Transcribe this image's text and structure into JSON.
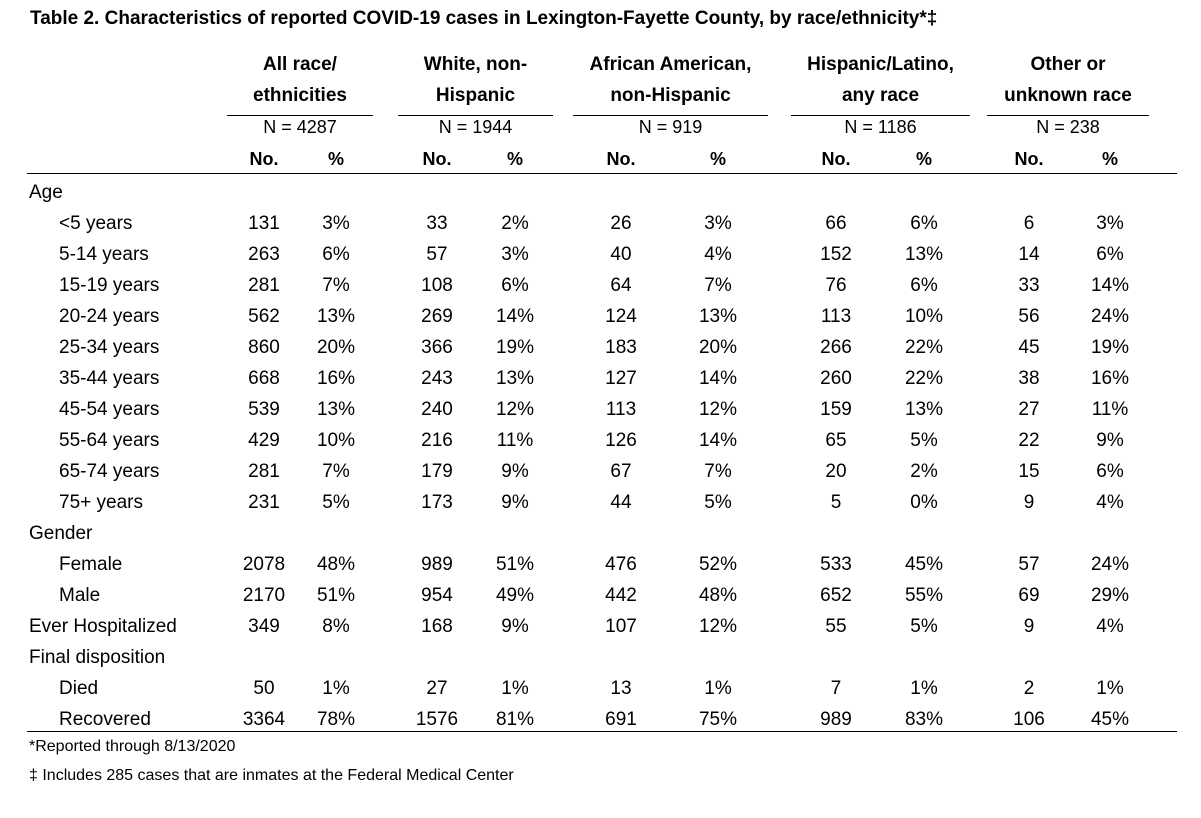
{
  "title": "Table 2. Characteristics of reported COVID-19 cases in Lexington-Fayette County, by race/ethnicity*‡",
  "groups": [
    {
      "line1": "All race/",
      "line2": "ethnicities",
      "n": "N = 4287"
    },
    {
      "line1": "White, non-",
      "line2": "Hispanic",
      "n": "N = 1944"
    },
    {
      "line1": "African American,",
      "line2": "non-Hispanic",
      "n": "N = 919"
    },
    {
      "line1": "Hispanic/Latino,",
      "line2": "any race",
      "n": "N = 1186"
    },
    {
      "line1": "Other or",
      "line2": "unknown race",
      "n": "N = 238"
    }
  ],
  "subheaders": {
    "no": "No.",
    "pct": "%"
  },
  "rows": [
    {
      "label": "Age",
      "indent": false,
      "values": []
    },
    {
      "label": "<5 years",
      "indent": true,
      "values": [
        "131",
        "3%",
        "33",
        "2%",
        "26",
        "3%",
        "66",
        "6%",
        "6",
        "3%"
      ]
    },
    {
      "label": "5-14 years",
      "indent": true,
      "values": [
        "263",
        "6%",
        "57",
        "3%",
        "40",
        "4%",
        "152",
        "13%",
        "14",
        "6%"
      ]
    },
    {
      "label": "15-19 years",
      "indent": true,
      "values": [
        "281",
        "7%",
        "108",
        "6%",
        "64",
        "7%",
        "76",
        "6%",
        "33",
        "14%"
      ]
    },
    {
      "label": "20-24 years",
      "indent": true,
      "values": [
        "562",
        "13%",
        "269",
        "14%",
        "124",
        "13%",
        "113",
        "10%",
        "56",
        "24%"
      ]
    },
    {
      "label": "25-34 years",
      "indent": true,
      "values": [
        "860",
        "20%",
        "366",
        "19%",
        "183",
        "20%",
        "266",
        "22%",
        "45",
        "19%"
      ]
    },
    {
      "label": "35-44 years",
      "indent": true,
      "values": [
        "668",
        "16%",
        "243",
        "13%",
        "127",
        "14%",
        "260",
        "22%",
        "38",
        "16%"
      ]
    },
    {
      "label": "45-54 years",
      "indent": true,
      "values": [
        "539",
        "13%",
        "240",
        "12%",
        "113",
        "12%",
        "159",
        "13%",
        "27",
        "11%"
      ]
    },
    {
      "label": "55-64 years",
      "indent": true,
      "values": [
        "429",
        "10%",
        "216",
        "11%",
        "126",
        "14%",
        "65",
        "5%",
        "22",
        "9%"
      ]
    },
    {
      "label": "65-74 years",
      "indent": true,
      "values": [
        "281",
        "7%",
        "179",
        "9%",
        "67",
        "7%",
        "20",
        "2%",
        "15",
        "6%"
      ]
    },
    {
      "label": "75+ years",
      "indent": true,
      "values": [
        "231",
        "5%",
        "173",
        "9%",
        "44",
        "5%",
        "5",
        "0%",
        "9",
        "4%"
      ]
    },
    {
      "label": "Gender",
      "indent": false,
      "values": []
    },
    {
      "label": "Female",
      "indent": true,
      "values": [
        "2078",
        "48%",
        "989",
        "51%",
        "476",
        "52%",
        "533",
        "45%",
        "57",
        "24%"
      ]
    },
    {
      "label": "Male",
      "indent": true,
      "values": [
        "2170",
        "51%",
        "954",
        "49%",
        "442",
        "48%",
        "652",
        "55%",
        "69",
        "29%"
      ]
    },
    {
      "label": "Ever Hospitalized",
      "indent": false,
      "values": [
        "349",
        "8%",
        "168",
        "9%",
        "107",
        "12%",
        "55",
        "5%",
        "9",
        "4%"
      ]
    },
    {
      "label": "Final disposition",
      "indent": false,
      "values": []
    },
    {
      "label": "Died",
      "indent": true,
      "values": [
        "50",
        "1%",
        "27",
        "1%",
        "13",
        "1%",
        "7",
        "1%",
        "2",
        "1%"
      ]
    },
    {
      "label": "Recovered",
      "indent": true,
      "values": [
        "3364",
        "78%",
        "1576",
        "81%",
        "691",
        "75%",
        "989",
        "83%",
        "106",
        "45%"
      ]
    }
  ],
  "footnotes": [
    "*Reported through 8/13/2020",
    "‡ Includes 285 cases that are inmates at the Federal Medical Center"
  ]
}
